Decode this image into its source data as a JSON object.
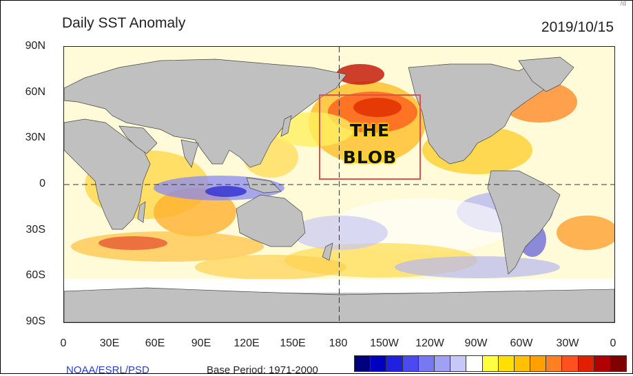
{
  "header": {
    "title": "Daily SST Anomaly",
    "date": "2019/10/15",
    "corner_mark": "/d"
  },
  "map": {
    "y_axis_labels": [
      "90N",
      "60N",
      "30N",
      "0",
      "30S",
      "60S",
      "90S"
    ],
    "x_axis_labels": [
      "0",
      "30E",
      "60E",
      "90E",
      "120E",
      "150E",
      "180",
      "150W",
      "120W",
      "90W",
      "60W",
      "30W",
      "0"
    ],
    "annotation": {
      "line1": "THE",
      "line2": "BLOB",
      "box_color": "#e05050"
    },
    "land_color": "#c0c0c0",
    "reference_lines": [
      "equator",
      "dateline"
    ]
  },
  "footer": {
    "source": "NOAA/ESRL/PSD",
    "base_period": "Base Period: 1971-2000"
  },
  "colorbar": {
    "colors": [
      "#00007f",
      "#0000c0",
      "#2020e0",
      "#4a4af0",
      "#7878f5",
      "#a0a0f5",
      "#c8c8f8",
      "#ffffff",
      "#ffff40",
      "#ffe000",
      "#ffc000",
      "#ffa000",
      "#ff8020",
      "#ff5020",
      "#e02000",
      "#b00000",
      "#800000"
    ]
  }
}
